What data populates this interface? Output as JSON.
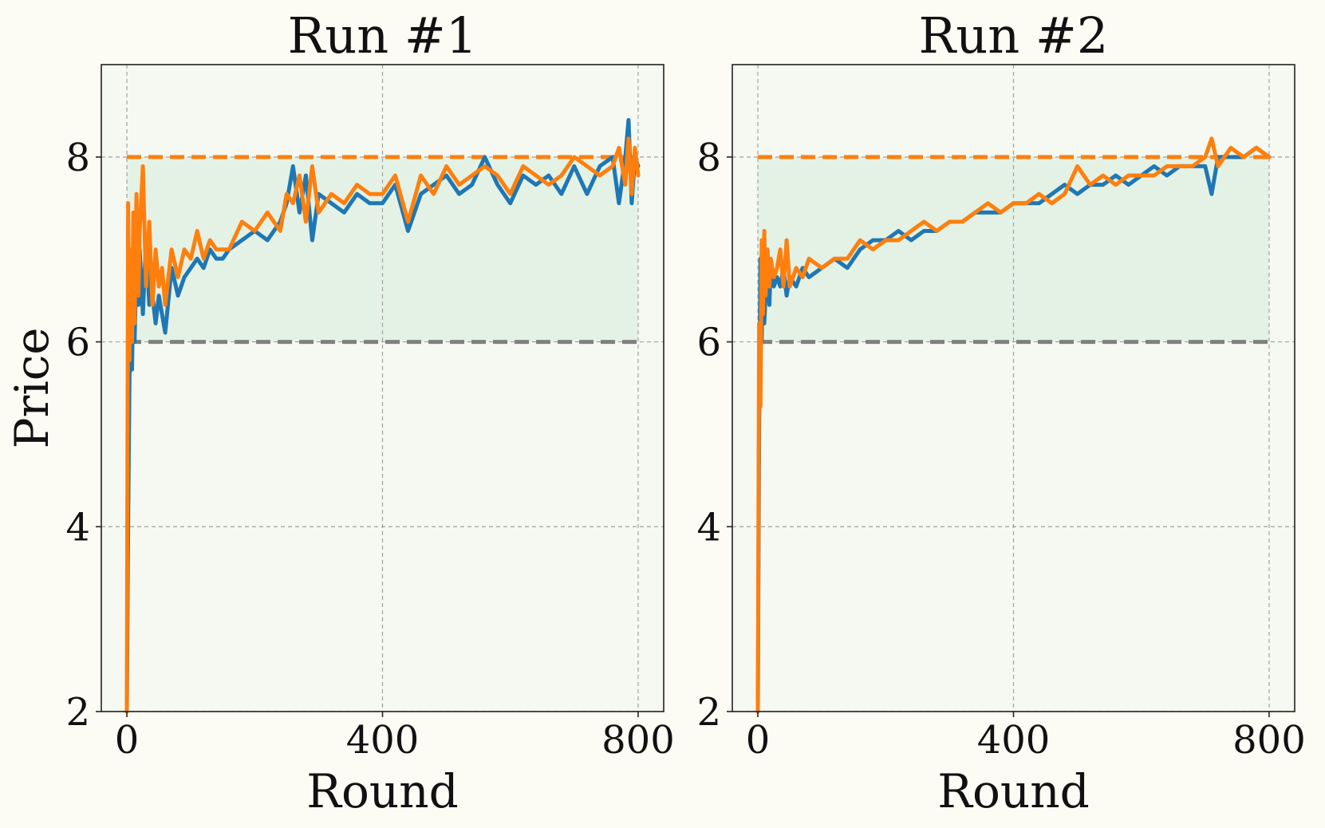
{
  "chart_data": [
    {
      "type": "line",
      "title": "Run #1",
      "xlabel": "Round",
      "ylabel": "Price",
      "xlim": [
        -40,
        840
      ],
      "ylim": [
        2,
        9
      ],
      "x_ticks": [
        0,
        400,
        800
      ],
      "y_ticks": [
        2,
        4,
        6,
        8
      ],
      "grid": true,
      "reference_lines": [
        {
          "y": 8,
          "color": "#ff7f0e",
          "style": "dashed"
        },
        {
          "y": 6,
          "color": "#808080",
          "style": "dashed"
        }
      ],
      "shaded_band": {
        "y_from": 6,
        "y_to": 8,
        "color": "#e4f2e6"
      },
      "series": [
        {
          "color": "#1f77b4",
          "x": [
            0,
            2,
            4,
            6,
            8,
            10,
            12,
            15,
            18,
            20,
            25,
            30,
            35,
            40,
            45,
            50,
            55,
            60,
            70,
            80,
            90,
            100,
            110,
            120,
            130,
            140,
            150,
            160,
            180,
            200,
            220,
            240,
            250,
            260,
            270,
            280,
            290,
            300,
            320,
            340,
            360,
            380,
            400,
            420,
            440,
            460,
            480,
            500,
            520,
            540,
            560,
            580,
            600,
            620,
            640,
            660,
            680,
            700,
            720,
            740,
            760,
            770,
            780,
            785,
            790,
            795,
            800
          ],
          "y": [
            2.0,
            4.0,
            5.6,
            6.3,
            5.7,
            6.6,
            6.0,
            6.9,
            6.4,
            7.0,
            6.3,
            7.1,
            6.4,
            6.5,
            6.2,
            6.5,
            6.3,
            6.1,
            6.8,
            6.5,
            6.7,
            6.8,
            6.9,
            6.8,
            7.0,
            6.9,
            6.9,
            7.0,
            7.1,
            7.2,
            7.1,
            7.3,
            7.5,
            7.9,
            7.4,
            7.8,
            7.1,
            7.6,
            7.5,
            7.4,
            7.6,
            7.5,
            7.5,
            7.7,
            7.2,
            7.6,
            7.7,
            7.8,
            7.6,
            7.7,
            8.0,
            7.7,
            7.5,
            7.8,
            7.7,
            7.8,
            7.6,
            7.9,
            7.6,
            7.9,
            8.0,
            7.5,
            8.0,
            8.4,
            7.5,
            8.0,
            7.9
          ]
        },
        {
          "color": "#ff7f0e",
          "x": [
            0,
            2,
            4,
            6,
            8,
            10,
            12,
            15,
            18,
            20,
            25,
            30,
            35,
            40,
            45,
            50,
            55,
            60,
            70,
            80,
            90,
            100,
            110,
            120,
            130,
            140,
            150,
            160,
            180,
            200,
            220,
            240,
            250,
            260,
            270,
            280,
            290,
            300,
            320,
            340,
            360,
            380,
            400,
            420,
            440,
            460,
            480,
            500,
            520,
            540,
            560,
            580,
            600,
            620,
            640,
            660,
            680,
            700,
            720,
            740,
            760,
            770,
            780,
            785,
            790,
            795,
            800
          ],
          "y": [
            2.0,
            7.5,
            5.8,
            7.0,
            6.0,
            7.4,
            6.2,
            7.6,
            6.5,
            7.2,
            7.9,
            6.6,
            7.3,
            6.4,
            7.0,
            6.6,
            6.8,
            6.4,
            7.0,
            6.7,
            7.0,
            6.9,
            7.2,
            6.9,
            7.1,
            7.0,
            7.0,
            7.0,
            7.3,
            7.2,
            7.4,
            7.2,
            7.6,
            7.5,
            7.8,
            7.3,
            7.9,
            7.4,
            7.6,
            7.5,
            7.7,
            7.6,
            7.6,
            7.8,
            7.3,
            7.8,
            7.6,
            7.9,
            7.7,
            7.8,
            7.9,
            7.8,
            7.6,
            7.9,
            7.8,
            7.7,
            7.8,
            8.0,
            7.9,
            7.8,
            7.9,
            8.1,
            7.7,
            8.2,
            7.6,
            8.1,
            7.8
          ]
        }
      ]
    },
    {
      "type": "line",
      "title": "Run #2",
      "xlabel": "Round",
      "ylabel": "",
      "xlim": [
        -40,
        840
      ],
      "ylim": [
        2,
        9
      ],
      "x_ticks": [
        0,
        400,
        800
      ],
      "y_ticks": [
        2,
        4,
        6,
        8
      ],
      "grid": true,
      "reference_lines": [
        {
          "y": 8,
          "color": "#ff7f0e",
          "style": "dashed"
        },
        {
          "y": 6,
          "color": "#808080",
          "style": "dashed"
        }
      ],
      "shaded_band": {
        "y_from": 6,
        "y_to": 8,
        "color": "#e4f2e6"
      },
      "series": [
        {
          "color": "#1f77b4",
          "x": [
            0,
            2,
            4,
            6,
            8,
            10,
            12,
            15,
            18,
            20,
            25,
            30,
            35,
            40,
            45,
            50,
            60,
            70,
            80,
            100,
            120,
            140,
            160,
            180,
            200,
            220,
            240,
            260,
            280,
            300,
            320,
            340,
            360,
            380,
            400,
            420,
            440,
            460,
            480,
            500,
            520,
            540,
            560,
            580,
            600,
            620,
            640,
            660,
            680,
            700,
            710,
            720,
            740,
            760,
            780,
            800
          ],
          "y": [
            2.0,
            5.0,
            6.9,
            6.0,
            7.0,
            6.2,
            6.5,
            6.9,
            6.4,
            6.8,
            6.6,
            6.7,
            6.6,
            6.8,
            6.5,
            6.7,
            6.6,
            6.8,
            6.7,
            6.8,
            6.9,
            6.8,
            7.0,
            7.1,
            7.1,
            7.2,
            7.1,
            7.2,
            7.2,
            7.3,
            7.3,
            7.4,
            7.4,
            7.4,
            7.5,
            7.5,
            7.5,
            7.6,
            7.7,
            7.6,
            7.7,
            7.7,
            7.8,
            7.7,
            7.8,
            7.9,
            7.8,
            7.9,
            7.9,
            7.9,
            7.6,
            8.0,
            8.0,
            8.0,
            8.1,
            8.0
          ]
        },
        {
          "color": "#ff7f0e",
          "x": [
            0,
            2,
            4,
            6,
            8,
            10,
            12,
            15,
            18,
            20,
            25,
            30,
            35,
            40,
            45,
            50,
            60,
            70,
            80,
            100,
            120,
            140,
            160,
            180,
            200,
            220,
            240,
            260,
            280,
            300,
            320,
            340,
            360,
            380,
            400,
            420,
            440,
            460,
            480,
            500,
            520,
            540,
            560,
            580,
            600,
            620,
            640,
            660,
            680,
            700,
            710,
            720,
            740,
            760,
            780,
            800
          ],
          "y": [
            2.0,
            6.2,
            5.3,
            7.1,
            6.3,
            7.2,
            6.5,
            7.0,
            6.6,
            6.9,
            6.7,
            6.8,
            7.0,
            6.6,
            7.1,
            6.6,
            6.8,
            6.7,
            6.9,
            6.8,
            6.9,
            6.9,
            7.1,
            7.0,
            7.1,
            7.1,
            7.2,
            7.3,
            7.2,
            7.3,
            7.3,
            7.4,
            7.5,
            7.4,
            7.5,
            7.5,
            7.6,
            7.5,
            7.6,
            7.9,
            7.7,
            7.8,
            7.7,
            7.8,
            7.8,
            7.8,
            7.9,
            7.9,
            7.9,
            8.0,
            8.2,
            7.9,
            8.1,
            8.0,
            8.1,
            8.0
          ]
        }
      ]
    }
  ]
}
